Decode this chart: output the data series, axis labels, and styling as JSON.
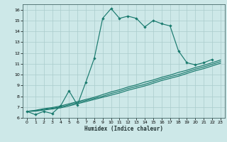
{
  "title": "",
  "xlabel": "Humidex (Indice chaleur)",
  "bg_color": "#cde8e8",
  "line_color": "#1a7a6e",
  "grid_color": "#aacccc",
  "xlim": [
    -0.5,
    23.5
  ],
  "ylim": [
    6,
    16.5
  ],
  "xticks": [
    0,
    1,
    2,
    3,
    4,
    5,
    6,
    7,
    8,
    9,
    10,
    11,
    12,
    13,
    14,
    15,
    16,
    17,
    18,
    19,
    20,
    21,
    22,
    23
  ],
  "yticks": [
    6,
    7,
    8,
    9,
    10,
    11,
    12,
    13,
    14,
    15,
    16
  ],
  "curve_x": [
    0,
    1,
    2,
    3,
    4,
    5,
    6,
    7,
    8,
    9,
    10,
    11,
    12,
    13,
    14,
    15,
    16,
    17,
    18,
    19,
    20,
    21,
    22
  ],
  "curve_y": [
    6.6,
    6.3,
    6.6,
    6.4,
    7.1,
    8.5,
    7.2,
    9.3,
    11.5,
    15.2,
    16.1,
    15.2,
    15.4,
    15.2,
    14.4,
    15.0,
    14.7,
    14.5,
    12.2,
    11.1,
    10.9,
    11.1,
    11.4
  ],
  "line1_x": [
    0,
    1,
    2,
    3,
    4,
    5,
    6,
    7,
    8,
    9,
    10,
    11,
    12,
    13,
    14,
    15,
    16,
    17,
    18,
    19,
    20,
    21,
    22,
    23
  ],
  "line1_y": [
    6.6,
    6.7,
    6.85,
    6.95,
    7.1,
    7.3,
    7.5,
    7.7,
    7.9,
    8.15,
    8.4,
    8.6,
    8.85,
    9.05,
    9.3,
    9.5,
    9.75,
    9.95,
    10.2,
    10.4,
    10.65,
    10.85,
    11.1,
    11.35
  ],
  "line2_x": [
    0,
    1,
    2,
    3,
    4,
    5,
    6,
    7,
    8,
    9,
    10,
    11,
    12,
    13,
    14,
    15,
    16,
    17,
    18,
    19,
    20,
    21,
    22,
    23
  ],
  "line2_y": [
    6.6,
    6.65,
    6.78,
    6.88,
    7.0,
    7.2,
    7.4,
    7.6,
    7.8,
    8.0,
    8.25,
    8.45,
    8.7,
    8.9,
    9.1,
    9.35,
    9.6,
    9.8,
    10.0,
    10.25,
    10.5,
    10.7,
    10.95,
    11.2
  ],
  "line3_x": [
    0,
    1,
    2,
    3,
    4,
    5,
    6,
    7,
    8,
    9,
    10,
    11,
    12,
    13,
    14,
    15,
    16,
    17,
    18,
    19,
    20,
    21,
    22,
    23
  ],
  "line3_y": [
    6.6,
    6.62,
    6.72,
    6.82,
    6.92,
    7.1,
    7.3,
    7.5,
    7.7,
    7.9,
    8.1,
    8.3,
    8.55,
    8.75,
    8.95,
    9.2,
    9.45,
    9.65,
    9.85,
    10.1,
    10.35,
    10.55,
    10.8,
    11.05
  ]
}
